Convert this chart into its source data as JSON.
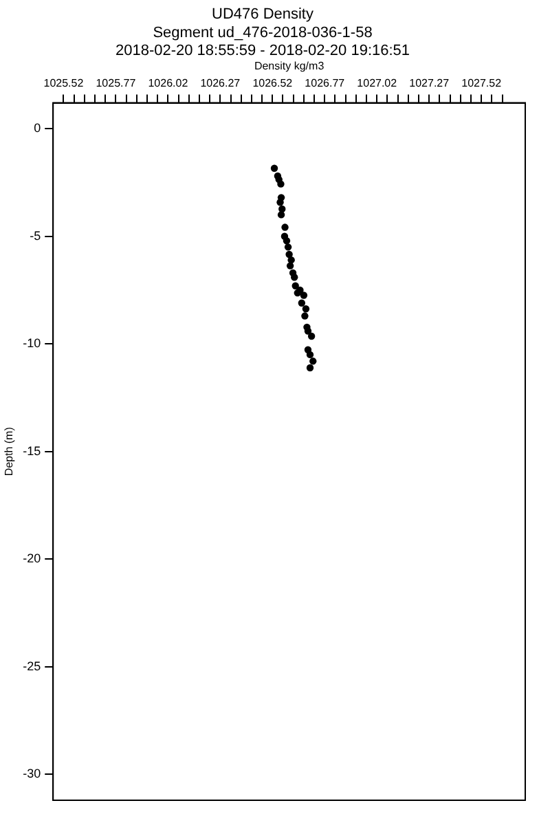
{
  "chart_data": {
    "type": "scatter",
    "title": "UD476 Density",
    "subtitle": "Segment ud_476-2018-036-1-58",
    "annotations": [
      "2018-02-20 18:55:59 - 2018-02-20 19:16:51"
    ],
    "xlabel": "Density kg/m3",
    "ylabel": "Depth (m)",
    "series": [
      {
        "color": "#000000",
        "x": [
          1026.529,
          1026.545,
          1026.551,
          1026.56,
          1026.562,
          1026.557,
          1026.566,
          1026.562,
          1026.572,
          1026.58,
          1026.578,
          1026.588,
          1026.595,
          1026.6,
          1026.61,
          1026.605,
          1026.618,
          1026.625,
          1026.63,
          1026.64,
          1026.652,
          1026.67,
          1026.66,
          1026.68,
          1026.675,
          1026.685,
          1026.69,
          1026.707,
          1026.69,
          1026.7,
          1026.714,
          1026.7
        ],
        "values": [
          -1.84,
          -2.2,
          -2.36,
          -2.57,
          -3.2,
          -3.42,
          -3.73,
          -4.0,
          null,
          -4.58,
          -5.0,
          -5.21,
          -5.5,
          -5.84,
          -6.1,
          -6.37,
          -6.7,
          -6.9,
          -7.3,
          -7.63,
          -7.5,
          -7.74,
          -8.1,
          -8.37,
          -8.7,
          -9.22,
          -9.4,
          -9.64,
          -10.27,
          -10.5,
          -10.8,
          -11.11
        ]
      }
    ],
    "marker": "circle",
    "xlim": [
      1025.47,
      1027.73
    ],
    "ylim": [
      -31.2,
      1.2
    ],
    "xticks": [
      1025.52,
      {
        "value": 1025.57,
        "label": null
      },
      {
        "value": 1025.62,
        "label": null
      },
      {
        "value": 1025.67,
        "label": null
      },
      {
        "value": 1025.72,
        "label": null
      },
      1025.77,
      {
        "value": 1025.82,
        "label": null
      },
      {
        "value": 1025.87,
        "label": null
      },
      {
        "value": 1025.92,
        "label": null
      },
      {
        "value": 1025.97,
        "label": null
      },
      {
        "value": 1026.02,
        "label": "1026.02"
      },
      {
        "value": 1026.07,
        "label": null
      },
      {
        "value": 1026.12,
        "label": null
      },
      {
        "value": 1026.17,
        "label": null
      },
      {
        "value": 1026.22,
        "label": null
      },
      1026.27,
      {
        "value": 1026.32,
        "label": null
      },
      {
        "value": 1026.37,
        "label": null
      },
      {
        "value": 1026.42,
        "label": null
      },
      {
        "value": 1026.47,
        "label": null
      },
      1026.52,
      {
        "value": 1026.57,
        "label": null
      },
      {
        "value": 1026.62,
        "label": null
      },
      {
        "value": 1026.67,
        "label": null
      },
      {
        "value": 1026.72,
        "label": null
      },
      1026.77,
      {
        "value": 1026.82,
        "label": null
      },
      {
        "value": 1026.87,
        "label": null
      },
      {
        "value": 1026.92,
        "label": null
      },
      {
        "value": 1026.97,
        "label": null
      },
      {
        "value": 1027.02,
        "label": "1027.02"
      },
      {
        "value": 1027.07,
        "label": null
      },
      {
        "value": 1027.12,
        "label": null
      },
      {
        "value": 1027.17,
        "label": null
      },
      {
        "value": 1027.22,
        "label": null
      },
      1027.27,
      {
        "value": 1027.32,
        "label": null
      },
      {
        "value": 1027.37,
        "label": null
      },
      {
        "value": 1027.42,
        "label": null
      },
      {
        "value": 1027.47,
        "label": null
      },
      1027.52,
      {
        "value": 1027.57,
        "label": null
      },
      {
        "value": 1027.62,
        "label": null
      }
    ],
    "yticks": [
      0,
      -5,
      -10,
      -15,
      -20,
      -25,
      -30
    ],
    "grid": false,
    "legend": false
  }
}
